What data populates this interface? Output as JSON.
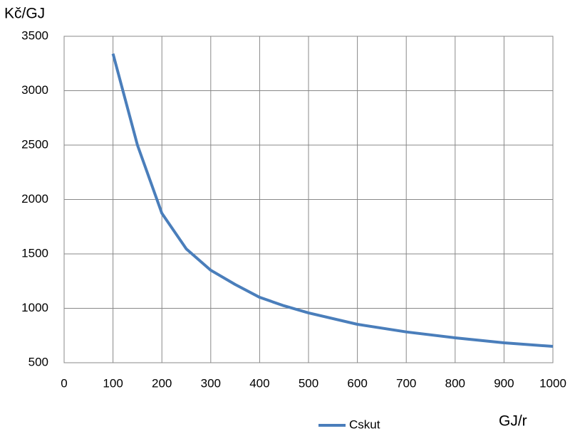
{
  "chart_data": {
    "type": "line",
    "y_axis_label": "Kč/GJ",
    "x_axis_label": "GJ/r",
    "x": [
      100,
      150,
      200,
      250,
      300,
      350,
      400,
      450,
      500,
      600,
      700,
      800,
      900,
      1000
    ],
    "series": [
      {
        "name": "Cskut",
        "color": "#4a7ebb",
        "values": [
          3340,
          2500,
          1873,
          1546,
          1350,
          1219,
          1101,
          1023,
          958,
          853,
          783,
          729,
          683,
          650
        ]
      }
    ],
    "xlim": [
      0,
      1000
    ],
    "xticks": [
      0,
      100,
      200,
      300,
      400,
      500,
      600,
      700,
      800,
      900,
      1000
    ],
    "ylim": [
      500,
      3500
    ],
    "yticks": [
      500,
      1000,
      1500,
      2000,
      2500,
      3000,
      3500
    ],
    "grid": true,
    "legend": "bottom"
  }
}
